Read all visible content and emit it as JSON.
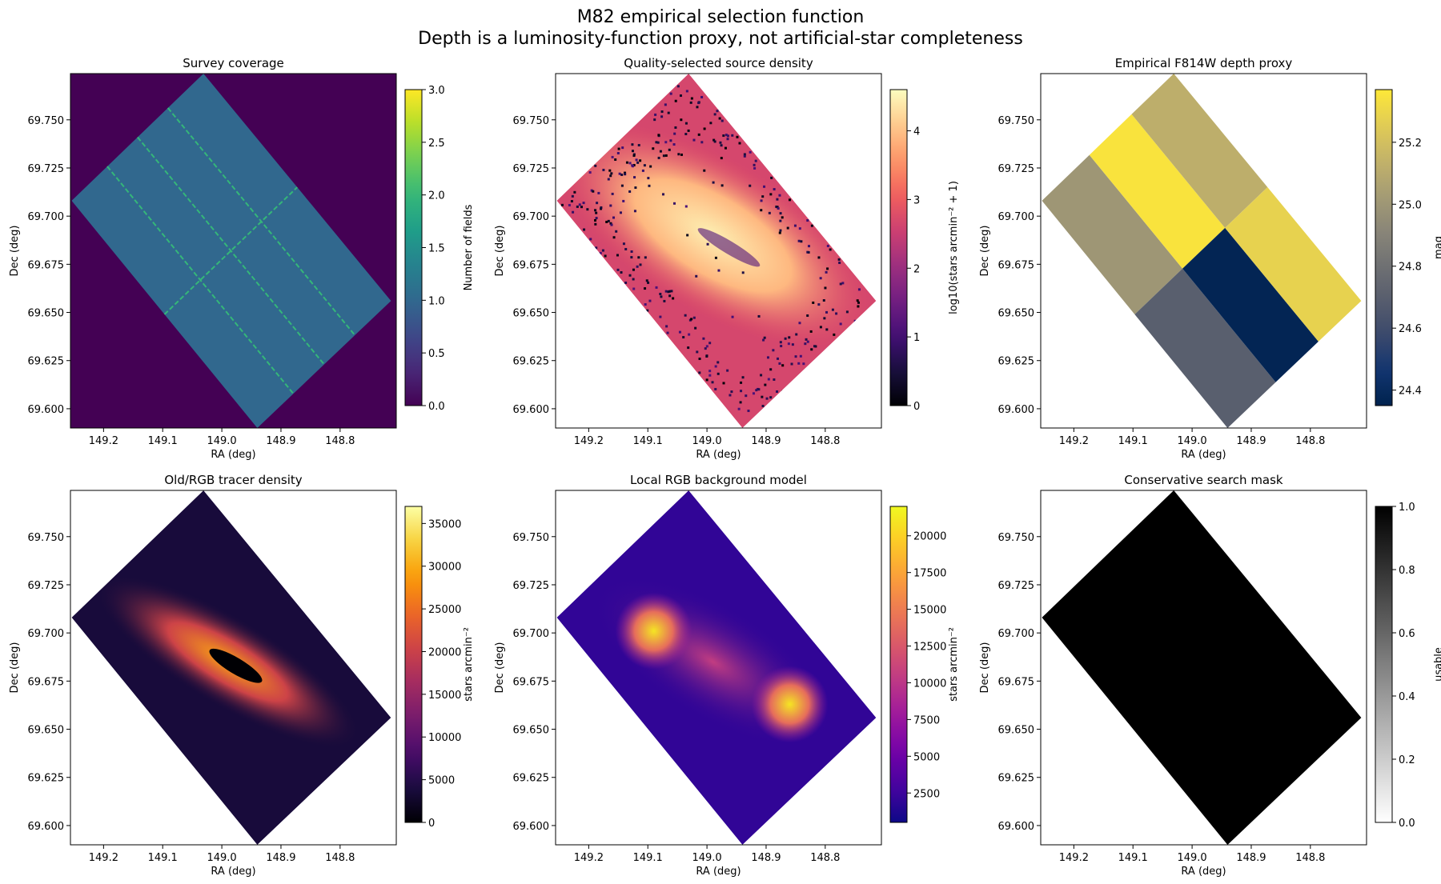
{
  "figure": {
    "title_line1": "M82 empirical selection function",
    "title_line2": "Depth is a luminosity-function proxy, not artificial-star completeness"
  },
  "chart_data": [
    {
      "id": "coverage",
      "type": "heatmap",
      "title": "Survey coverage",
      "xlabel": "RA (deg)",
      "ylabel": "Dec (deg)",
      "x_ticks": [
        "149.2",
        "149.1",
        "149.0",
        "148.9",
        "148.8"
      ],
      "y_ticks": [
        "69.600",
        "69.625",
        "69.650",
        "69.675",
        "69.700",
        "69.725",
        "69.750"
      ],
      "colorbar": {
        "label": "Number of fields",
        "ticks": [
          "0.0",
          "0.5",
          "1.0",
          "1.5",
          "2.0",
          "2.5",
          "3.0"
        ],
        "range": [
          0,
          3
        ],
        "colormap": "viridis"
      },
      "background_value": 0,
      "footprint_value": 1,
      "overlap_value": 2
    },
    {
      "id": "quality_density",
      "type": "heatmap",
      "title": "Quality-selected source density",
      "xlabel": "RA (deg)",
      "ylabel": "Dec (deg)",
      "x_ticks": [
        "149.2",
        "149.1",
        "149.0",
        "148.9",
        "148.8"
      ],
      "y_ticks": [
        "69.600",
        "69.625",
        "69.650",
        "69.675",
        "69.700",
        "69.725",
        "69.750"
      ],
      "colorbar": {
        "label": "log10(stars arcmin⁻² + 1)",
        "ticks": [
          "0",
          "1",
          "2",
          "3",
          "4"
        ],
        "range": [
          0,
          4.6
        ],
        "colormap": "magma"
      }
    },
    {
      "id": "depth_proxy",
      "type": "heatmap",
      "title": "Empirical F814W depth proxy",
      "xlabel": "RA (deg)",
      "ylabel": "Dec (deg)",
      "x_ticks": [
        "149.2",
        "149.1",
        "149.0",
        "148.9",
        "148.8"
      ],
      "y_ticks": [
        "69.600",
        "69.625",
        "69.650",
        "69.675",
        "69.700",
        "69.725",
        "69.750"
      ],
      "colorbar": {
        "label": "mag",
        "ticks": [
          "24.4",
          "24.6",
          "24.8",
          "25.0",
          "25.2"
        ],
        "range": [
          24.35,
          25.37
        ],
        "colormap": "cividis"
      },
      "field_depths": [
        25.0,
        25.35,
        24.7,
        24.37,
        25.12,
        25.28
      ]
    },
    {
      "id": "rgb_density",
      "type": "heatmap",
      "title": "Old/RGB tracer density",
      "xlabel": "RA (deg)",
      "ylabel": "Dec (deg)",
      "x_ticks": [
        "149.2",
        "149.1",
        "149.0",
        "148.9",
        "148.8"
      ],
      "y_ticks": [
        "69.600",
        "69.625",
        "69.650",
        "69.675",
        "69.700",
        "69.725",
        "69.750"
      ],
      "colorbar": {
        "label": "stars arcmin⁻²",
        "ticks": [
          "0",
          "5000",
          "10000",
          "15000",
          "20000",
          "25000",
          "30000",
          "35000"
        ],
        "range": [
          0,
          37000
        ],
        "colormap": "inferno"
      }
    },
    {
      "id": "background_model",
      "type": "heatmap",
      "title": "Local RGB background model",
      "xlabel": "RA (deg)",
      "ylabel": "Dec (deg)",
      "x_ticks": [
        "149.2",
        "149.1",
        "149.0",
        "148.9",
        "148.8"
      ],
      "y_ticks": [
        "69.600",
        "69.625",
        "69.650",
        "69.675",
        "69.700",
        "69.725",
        "69.750"
      ],
      "colorbar": {
        "label": "stars arcmin⁻²",
        "ticks": [
          "2500",
          "5000",
          "7500",
          "10000",
          "12500",
          "15000",
          "17500",
          "20000"
        ],
        "range": [
          500,
          22000
        ],
        "colormap": "plasma"
      }
    },
    {
      "id": "search_mask",
      "type": "heatmap",
      "title": "Conservative search mask",
      "xlabel": "RA (deg)",
      "ylabel": "Dec (deg)",
      "x_ticks": [
        "149.2",
        "149.1",
        "149.0",
        "148.9",
        "148.8"
      ],
      "y_ticks": [
        "69.600",
        "69.625",
        "69.650",
        "69.675",
        "69.700",
        "69.725",
        "69.750"
      ],
      "colorbar": {
        "label": "usable",
        "ticks": [
          "0.0",
          "0.2",
          "0.4",
          "0.6",
          "0.8",
          "1.0"
        ],
        "range": [
          0,
          1
        ],
        "colormap": "Greys"
      },
      "footprint_value": 1
    }
  ]
}
